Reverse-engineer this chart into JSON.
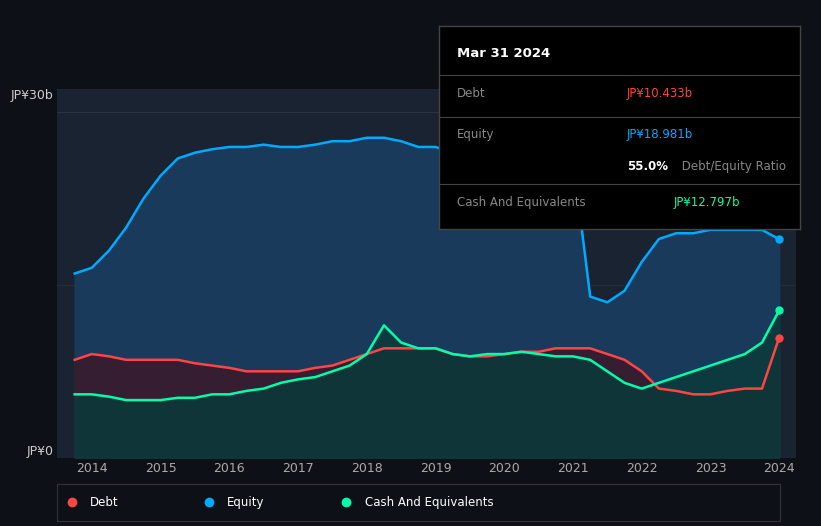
{
  "bg_color": "#0d1117",
  "plot_bg_color": "#1a2332",
  "grid_color": "#2a3a4a",
  "ylabel_top": "JP¥30b",
  "ylabel_bottom": "JP¥0",
  "equity_color": "#00aaff",
  "debt_color": "#ff4444",
  "cash_color": "#00ffaa",
  "equity_fill": "#1a3a5c",
  "debt_fill": "#3a1a2a",
  "cash_fill": "#0a3a3a",
  "years": [
    2013.75,
    2014.0,
    2014.25,
    2014.5,
    2014.75,
    2015.0,
    2015.25,
    2015.5,
    2015.75,
    2016.0,
    2016.25,
    2016.5,
    2016.75,
    2017.0,
    2017.25,
    2017.5,
    2017.75,
    2018.0,
    2018.25,
    2018.5,
    2018.75,
    2019.0,
    2019.25,
    2019.5,
    2019.75,
    2020.0,
    2020.25,
    2020.5,
    2020.75,
    2021.0,
    2021.25,
    2021.5,
    2021.75,
    2022.0,
    2022.25,
    2022.5,
    2022.75,
    2023.0,
    2023.25,
    2023.5,
    2023.75,
    2024.0
  ],
  "equity": [
    16.0,
    16.5,
    18.0,
    20.0,
    22.5,
    24.5,
    26.0,
    26.5,
    26.8,
    27.0,
    27.0,
    27.2,
    27.0,
    27.0,
    27.2,
    27.5,
    27.5,
    27.8,
    27.8,
    27.5,
    27.0,
    27.0,
    26.5,
    26.0,
    26.0,
    26.0,
    26.0,
    26.0,
    26.0,
    26.0,
    14.0,
    13.5,
    14.5,
    17.0,
    19.0,
    19.5,
    19.5,
    19.8,
    19.8,
    19.8,
    19.8,
    18.981
  ],
  "debt": [
    8.5,
    9.0,
    8.8,
    8.5,
    8.5,
    8.5,
    8.5,
    8.2,
    8.0,
    7.8,
    7.5,
    7.5,
    7.5,
    7.5,
    7.8,
    8.0,
    8.5,
    9.0,
    9.5,
    9.5,
    9.5,
    9.5,
    9.0,
    8.8,
    8.8,
    9.0,
    9.2,
    9.2,
    9.5,
    9.5,
    9.5,
    9.0,
    8.5,
    7.5,
    6.0,
    5.8,
    5.5,
    5.5,
    5.8,
    6.0,
    6.0,
    10.433
  ],
  "cash": [
    5.5,
    5.5,
    5.3,
    5.0,
    5.0,
    5.0,
    5.2,
    5.2,
    5.5,
    5.5,
    5.8,
    6.0,
    6.5,
    6.8,
    7.0,
    7.5,
    8.0,
    9.0,
    11.5,
    10.0,
    9.5,
    9.5,
    9.0,
    8.8,
    9.0,
    9.0,
    9.2,
    9.0,
    8.8,
    8.8,
    8.5,
    7.5,
    6.5,
    6.0,
    6.5,
    7.0,
    7.5,
    8.0,
    8.5,
    9.0,
    10.0,
    12.797
  ],
  "xmin": 2013.5,
  "xmax": 2024.25,
  "ymin": 0,
  "ymax": 32,
  "xticks": [
    2014,
    2015,
    2016,
    2017,
    2018,
    2019,
    2020,
    2021,
    2022,
    2023,
    2024
  ],
  "xtick_labels": [
    "2014",
    "2015",
    "2016",
    "2017",
    "2018",
    "2019",
    "2020",
    "2021",
    "2022",
    "2023",
    "2024"
  ],
  "legend_items": [
    "Debt",
    "Equity",
    "Cash And Equivalents"
  ],
  "legend_colors": [
    "#ff4444",
    "#00aaff",
    "#00ffaa"
  ],
  "tooltip_title": "Mar 31 2024",
  "tooltip_debt_label": "Debt",
  "tooltip_debt_value": "JP¥10.433b",
  "tooltip_equity_label": "Equity",
  "tooltip_equity_value": "JP¥18.981b",
  "tooltip_ratio": "55.0%",
  "tooltip_ratio_label": " Debt/Equity Ratio",
  "tooltip_cash_label": "Cash And Equivalents",
  "tooltip_cash_value": "JP¥12.797b"
}
